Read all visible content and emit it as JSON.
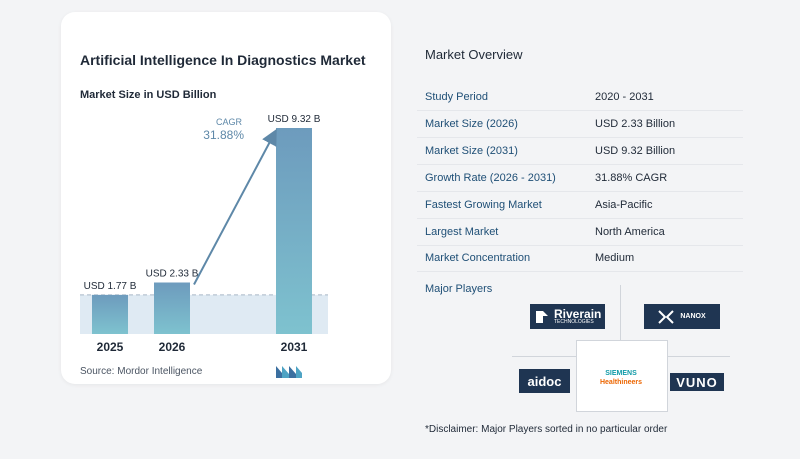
{
  "chart_data": {
    "type": "bar",
    "title": "Artificial Intelligence In Diagnostics Market",
    "subtitle": "Market Size in USD Billion",
    "categories": [
      "2025",
      "2026",
      "2031"
    ],
    "values": [
      1.77,
      2.33,
      9.32
    ],
    "data_labels": [
      "USD 1.77 B",
      "USD 2.33 B",
      "USD 9.32 B"
    ],
    "cagr_label": "CAGR",
    "cagr_value": "31.88%",
    "ylim": [
      0,
      9.32
    ],
    "grid": false,
    "colors": {
      "bar_top": "#6d9bbd",
      "bar_bottom": "#7ec2cf",
      "arrow": "#5e88a8",
      "band": "#dfeaf3"
    }
  },
  "source": "Source:  Mordor Intelligence",
  "overview": {
    "title": "Market Overview",
    "rows": [
      {
        "label": "Study Period",
        "value": "2020 - 2031"
      },
      {
        "label": "Market Size (2026)",
        "value": "USD 2.33 Billion"
      },
      {
        "label": "Market Size (2031)",
        "value": "USD 9.32 Billion"
      },
      {
        "label": "Growth Rate (2026 - 2031)",
        "value": "31.88% CAGR"
      },
      {
        "label": "Fastest Growing Market",
        "value": "Asia-Pacific"
      },
      {
        "label": "Largest Market",
        "value": "North America"
      },
      {
        "label": "Market Concentration",
        "value": "Medium"
      }
    ]
  },
  "players": {
    "title": "Major Players",
    "riverain": "Riverain",
    "riverain_sub": "TECHNOLOGIES",
    "nanox": "NANOX",
    "aidoc": "aidoc",
    "siemens_1": "SIEMENS",
    "siemens_2": "Healthineers",
    "vuno": "VUNO"
  },
  "disclaimer": "*Disclaimer: Major Players sorted in no particular order"
}
